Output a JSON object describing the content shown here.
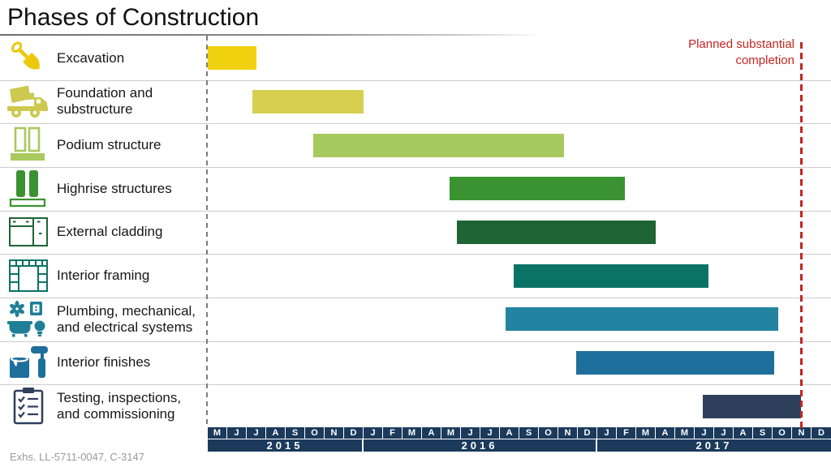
{
  "title": "Phases of Construction",
  "footnote": "Exhs. LL-5711-0047, C-3147",
  "colors": {
    "axis_navy": "#1b3a5c",
    "grid_divider": "#cccccc",
    "start_line_gray": "#7c7c7c",
    "milestone_red": "#c42522",
    "title_text": "#101010",
    "footnote_gray": "#9a9a9a"
  },
  "chart_data": {
    "type": "bar",
    "variant": "gantt",
    "title": "Phases of Construction",
    "x_axis": {
      "unit": "month",
      "start": "May 2015",
      "end": "Dec 2017",
      "total_months": 32,
      "month_labels": [
        "M",
        "J",
        "J",
        "A",
        "S",
        "O",
        "N",
        "D",
        "J",
        "F",
        "M",
        "A",
        "M",
        "J",
        "J",
        "A",
        "S",
        "O",
        "N",
        "D",
        "J",
        "F",
        "M",
        "A",
        "M",
        "J",
        "J",
        "A",
        "S",
        "O",
        "N",
        "D"
      ],
      "years": [
        {
          "label": "2015",
          "months": 8
        },
        {
          "label": "2016",
          "months": 12
        },
        {
          "label": "2017",
          "months": 12
        }
      ]
    },
    "tasks": [
      {
        "id": "excavation",
        "label": "Excavation",
        "icon": "shovel",
        "color": "#f0d30e",
        "start_month": 0.0,
        "end_month": 2.5,
        "start": "May 2015",
        "end": "mid-Jul 2015"
      },
      {
        "id": "foundation",
        "label": "Foundation and substructure",
        "icon": "cement-mixer",
        "color": "#d6cf4f",
        "start_month": 2.3,
        "end_month": 8.0,
        "start": "mid-Jul 2015",
        "end": "Dec 2015"
      },
      {
        "id": "podium",
        "label": "Podium structure",
        "icon": "podium-buildings",
        "color": "#a8c95e",
        "start_month": 5.4,
        "end_month": 18.3,
        "start": "mid-Oct 2015",
        "end": "early Nov 2016"
      },
      {
        "id": "highrise",
        "label": "Highrise structures",
        "icon": "highrise-towers",
        "color": "#3a9230",
        "start_month": 12.4,
        "end_month": 21.4,
        "start": "mid-May 2016",
        "end": "mid-Feb 2017"
      },
      {
        "id": "cladding",
        "label": "External cladding",
        "icon": "cladding-panels",
        "color": "#1e6434",
        "start_month": 12.8,
        "end_month": 23.0,
        "start": "late May 2016",
        "end": "Mar 2017"
      },
      {
        "id": "framing",
        "label": "Interior framing",
        "icon": "framing-grid",
        "color": "#0b7266",
        "start_month": 15.7,
        "end_month": 25.7,
        "start": "late Aug 2016",
        "end": "late Jun 2017"
      },
      {
        "id": "mep",
        "label": "Plumbing, mechanical, and electrical systems",
        "icon": "mep-fixtures",
        "color": "#2284a0",
        "start_month": 15.3,
        "end_month": 29.3,
        "start": "mid-Aug 2016",
        "end": "early Oct 2017"
      },
      {
        "id": "finishes",
        "label": "Interior finishes",
        "icon": "paint-roller",
        "color": "#1e6f9b",
        "start_month": 18.9,
        "end_month": 29.1,
        "start": "late Nov 2016",
        "end": "early Oct 2017"
      },
      {
        "id": "testing",
        "label": "Testing, inspections, and commissioning",
        "icon": "checklist-clipboard",
        "color": "#2e3f5b",
        "start_month": 25.4,
        "end_month": 30.45,
        "start": "mid-Jun 2017",
        "end": "mid-Nov 2017"
      }
    ],
    "milestone": {
      "label": "Planned substantial completion",
      "month": 30.45,
      "date": "mid-Nov 2017",
      "color": "#c42522"
    }
  }
}
